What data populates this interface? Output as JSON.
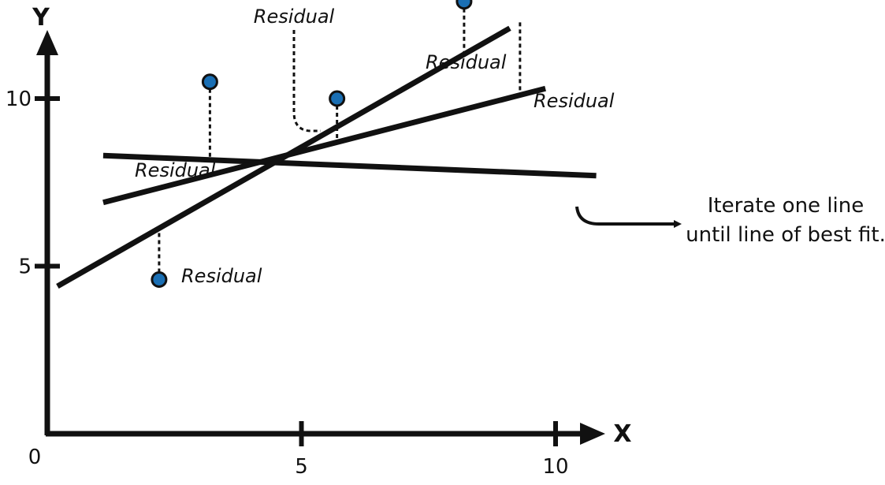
{
  "chart_data": {
    "type": "scatter",
    "xlabel": "X",
    "ylabel": "Y",
    "xlim": [
      0,
      12.5
    ],
    "ylim": [
      0,
      13
    ],
    "x_ticks": [
      {
        "value": 5,
        "label": "5"
      },
      {
        "value": 10,
        "label": "10"
      }
    ],
    "y_ticks": [
      {
        "value": 5,
        "label": "5"
      },
      {
        "value": 10,
        "label": "10"
      }
    ],
    "origin_label": "0",
    "points": [
      {
        "x": 3.2,
        "y": 10.5
      },
      {
        "x": 5.7,
        "y": 10.0
      },
      {
        "x": 8.2,
        "y": 12.9
      },
      {
        "x": 2.2,
        "y": 4.6
      }
    ],
    "lines": [
      {
        "x1": 1.1,
        "y1": 8.3,
        "x2": 10.8,
        "y2": 7.7
      },
      {
        "x1": 1.1,
        "y1": 6.9,
        "x2": 9.8,
        "y2": 10.3
      },
      {
        "x1": 0.2,
        "y1": 4.4,
        "x2": 9.1,
        "y2": 12.1
      }
    ],
    "residual_label": "Residual",
    "annotation": [
      "Iterate one line",
      "until line of best fit."
    ],
    "point_color": "#1a6fb4",
    "line_color": "#111111"
  }
}
